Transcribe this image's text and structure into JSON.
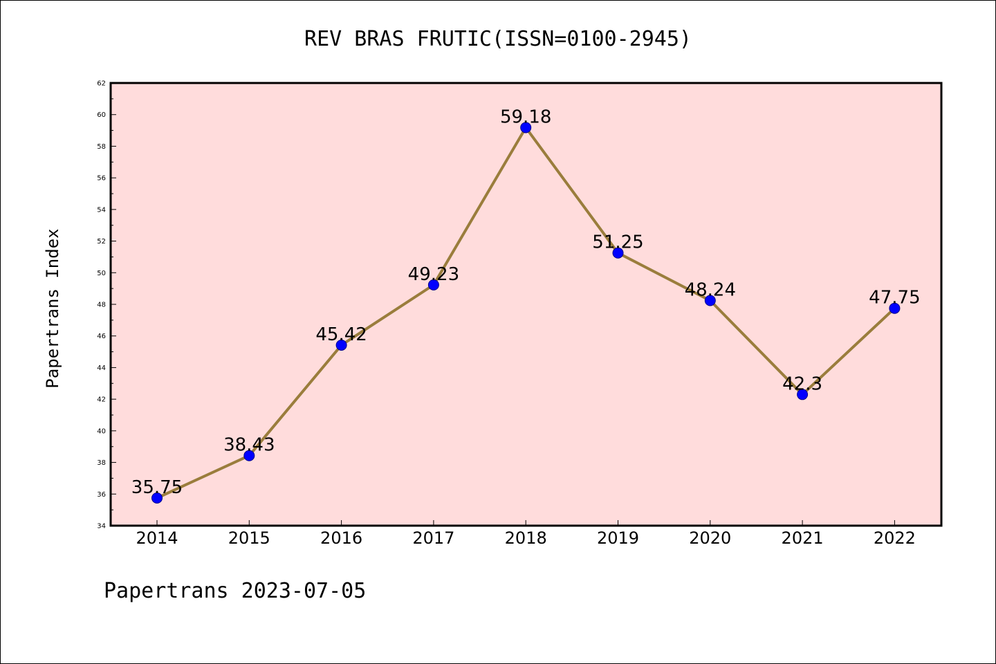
{
  "chart_data": {
    "type": "line",
    "title": "REV BRAS FRUTIC(ISSN=0100-2945)",
    "xlabel": "",
    "ylabel": "Papertrans Index",
    "categories": [
      "2014",
      "2015",
      "2016",
      "2017",
      "2018",
      "2019",
      "2020",
      "2021",
      "2022"
    ],
    "series": [
      {
        "values": [
          35.75,
          38.43,
          45.42,
          49.23,
          59.18,
          51.25,
          48.24,
          42.3,
          47.75
        ],
        "labels": [
          "35.75",
          "38.43",
          "45.42",
          "49.23",
          "59.18",
          "51.25",
          "48.24",
          "42.3",
          "47.75"
        ]
      }
    ],
    "ylim": [
      34,
      62
    ],
    "yticks": [
      "34",
      "36",
      "38",
      "40",
      "42",
      "44",
      "46",
      "48",
      "50",
      "52",
      "54",
      "56",
      "58",
      "60",
      "62"
    ],
    "grid": false,
    "legend": "none",
    "colors": {
      "plot_background": "#ffdcdc",
      "line": "#9a7d3c",
      "marker_fill": "#0000ff",
      "marker_stroke": "#00008b",
      "frame": "#000000"
    }
  },
  "footer": {
    "text": "Papertrans 2023-07-05"
  }
}
